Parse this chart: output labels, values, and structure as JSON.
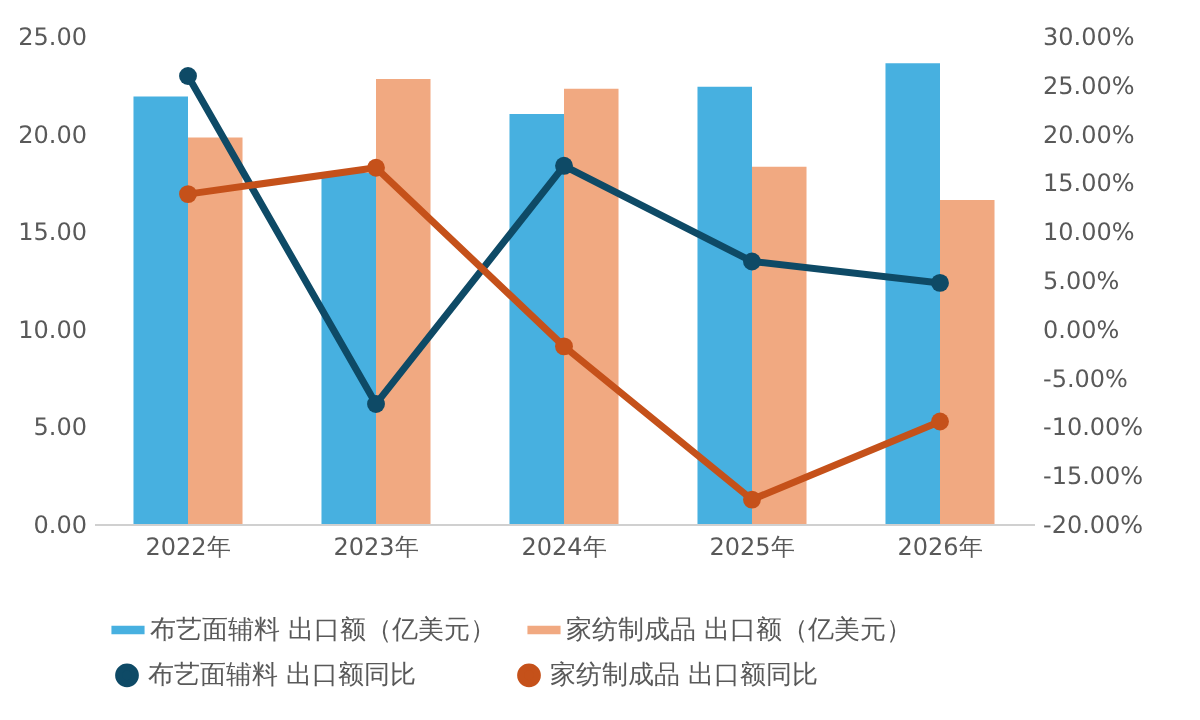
{
  "chart_data": {
    "type": "bar",
    "categories": [
      "2022年",
      "2023年",
      "2024年",
      "2025年",
      "2026年"
    ],
    "series": [
      {
        "name": "布艺面辅料 出口额（亿美元）",
        "color": "#47b0e0",
        "values": [
          21.9,
          18.0,
          21.0,
          22.4,
          23.6
        ]
      },
      {
        "name": "家纺制成品 出口额（亿美元）",
        "color": "#f1a981",
        "values": [
          19.8,
          22.8,
          22.3,
          18.3,
          16.6
        ]
      },
      {
        "name": "布艺面辅料 出口额同比",
        "type": "line",
        "axis": "y2",
        "color": "#0e4a66",
        "values": [
          25.9,
          -7.7,
          16.7,
          6.9,
          4.7
        ]
      },
      {
        "name": "家纺制成品 出口额同比",
        "type": "line",
        "axis": "y2",
        "color": "#c5511a",
        "values": [
          13.8,
          16.5,
          -1.8,
          -17.5,
          -9.5
        ]
      }
    ],
    "ylim": [
      0,
      25
    ],
    "yticks": [
      {
        "value": 0,
        "label": "0.00"
      },
      {
        "value": 5,
        "label": "5.00"
      },
      {
        "value": 10,
        "label": "10.00"
      },
      {
        "value": 15,
        "label": "15.00"
      },
      {
        "value": 20,
        "label": "20.00"
      },
      {
        "value": 25,
        "label": "25.00"
      }
    ],
    "y2lim": [
      -20,
      30
    ],
    "y2ticks": [
      {
        "value": -20,
        "label": "-20.00%"
      },
      {
        "value": -15,
        "label": "-15.00%"
      },
      {
        "value": -10,
        "label": "-10.00%"
      },
      {
        "value": -5,
        "label": "-5.00%"
      },
      {
        "value": 0,
        "label": "0.00%"
      },
      {
        "value": 5,
        "label": "5.00%"
      },
      {
        "value": 10,
        "label": "10.00%"
      },
      {
        "value": 15,
        "label": "15.00%"
      },
      {
        "value": 20,
        "label": "20.00%"
      },
      {
        "value": 25,
        "label": "25.00%"
      },
      {
        "value": 30,
        "label": "30.00%"
      }
    ],
    "marker": "circle",
    "grid": false,
    "legend": "bottom"
  }
}
